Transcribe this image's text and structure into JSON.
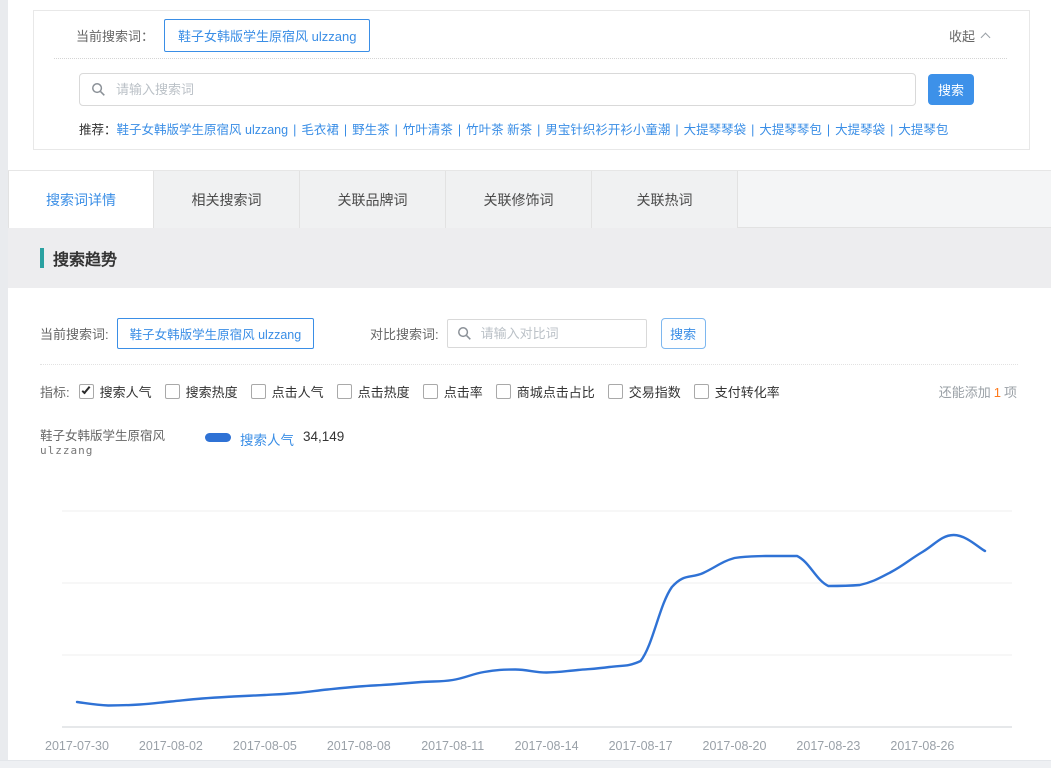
{
  "colors": {
    "accent": "#3a8ee6",
    "button": "#3d91e9",
    "line": "#2f72d5",
    "teal": "#2aa1a1",
    "orange": "#ff7a1c"
  },
  "top_panel": {
    "current_label": "当前搜索词：",
    "current_term": "鞋子女韩版学生原宿风 ulzzang",
    "collapse_label": "收起",
    "search_placeholder": "请输入搜索词",
    "search_button": "搜索",
    "recommend_label": "推荐：",
    "separator": "|",
    "recommend_terms": [
      "鞋子女韩版学生原宿风 ulzzang",
      "毛衣裙",
      "野生茶",
      "竹叶清茶",
      "竹叶茶 新茶",
      "男宝针织衫开衫小童潮",
      "大提琴琴袋",
      "大提琴琴包",
      "大提琴袋",
      "大提琴包"
    ]
  },
  "tabs": [
    {
      "label": "搜索词详情",
      "active": true
    },
    {
      "label": "相关搜索词",
      "active": false
    },
    {
      "label": "关联品牌词",
      "active": false
    },
    {
      "label": "关联修饰词",
      "active": false
    },
    {
      "label": "关联热词",
      "active": false
    }
  ],
  "section_title": "搜索趋势",
  "compare_bar": {
    "current_label": "当前搜索词:",
    "current_term": "鞋子女韩版学生原宿风 ulzzang",
    "compare_label": "对比搜索词:",
    "compare_placeholder": "请输入对比词",
    "search_button": "搜索"
  },
  "metrics": {
    "label": "指标:",
    "items": [
      {
        "label": "搜索人气",
        "checked": true
      },
      {
        "label": "搜索热度",
        "checked": false
      },
      {
        "label": "点击人气",
        "checked": false
      },
      {
        "label": "点击热度",
        "checked": false
      },
      {
        "label": "点击率",
        "checked": false
      },
      {
        "label": "商城点击占比",
        "checked": false
      },
      {
        "label": "交易指数",
        "checked": false
      },
      {
        "label": "支付转化率",
        "checked": false
      }
    ],
    "remain_prefix": "还能添加",
    "remain_count": "1",
    "remain_suffix": "项"
  },
  "legend": {
    "series_name_line1": "鞋子女韩版学生原宿风",
    "series_name_line2": "ulzzang",
    "metric": "搜索人气",
    "value": "34,149"
  },
  "chart_data": {
    "type": "line",
    "title": "搜索趋势",
    "xlabel": "",
    "ylabel": "搜索人气",
    "ylim": [
      0,
      40000
    ],
    "grid": true,
    "legend_position": "top-left",
    "line_color": "#2f72d5",
    "x": [
      "2017-07-30",
      "2017-07-31",
      "2017-08-01",
      "2017-08-02",
      "2017-08-03",
      "2017-08-04",
      "2017-08-05",
      "2017-08-06",
      "2017-08-07",
      "2017-08-08",
      "2017-08-09",
      "2017-08-10",
      "2017-08-11",
      "2017-08-12",
      "2017-08-13",
      "2017-08-14",
      "2017-08-15",
      "2017-08-16",
      "2017-08-17",
      "2017-08-18",
      "2017-08-19",
      "2017-08-20",
      "2017-08-21",
      "2017-08-22",
      "2017-08-23",
      "2017-08-24",
      "2017-08-25",
      "2017-08-26",
      "2017-08-27",
      "2017-08-28"
    ],
    "tick_labels": [
      "2017-07-30",
      "2017-08-02",
      "2017-08-05",
      "2017-08-08",
      "2017-08-11",
      "2017-08-14",
      "2017-08-17",
      "2017-08-20",
      "2017-08-23",
      "2017-08-26"
    ],
    "series": [
      {
        "name": "鞋子女韩版学生原宿风 ulzzang",
        "metric": "搜索人气",
        "latest_value": 34149,
        "values": [
          4851,
          4171,
          4365,
          4947,
          5529,
          5917,
          6208,
          6596,
          7275,
          7857,
          8245,
          8730,
          9118,
          10670,
          11155,
          10573,
          11058,
          11640,
          12804,
          27160,
          29876,
          32786,
          33174,
          33174,
          27354,
          27548,
          30070,
          33950,
          37248,
          34149
        ]
      }
    ]
  }
}
